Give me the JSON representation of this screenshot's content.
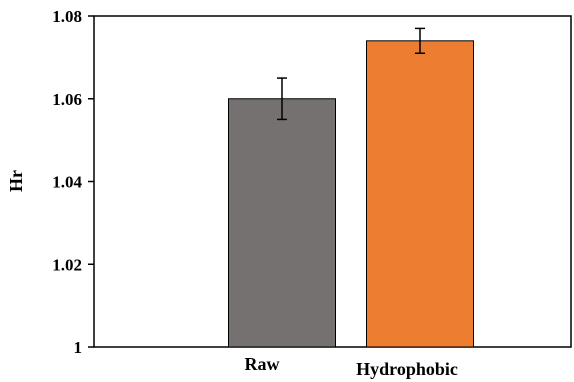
{
  "chart_data": {
    "type": "bar",
    "title": "",
    "xlabel": "",
    "ylabel": "Hr",
    "categories": [
      "Raw",
      "Hydrophobic"
    ],
    "values": [
      1.06,
      1.074
    ],
    "errors": [
      0.005,
      0.003
    ],
    "colors": [
      "#767171",
      "#ED7D31"
    ],
    "ylim": [
      1.0,
      1.08
    ],
    "yticks": [
      1.0,
      1.02,
      1.04,
      1.06,
      1.08
    ],
    "ytick_labels": [
      "1",
      "1.02",
      "1.04",
      "1.06",
      "1.08"
    ],
    "grid": false,
    "legend": "none"
  }
}
